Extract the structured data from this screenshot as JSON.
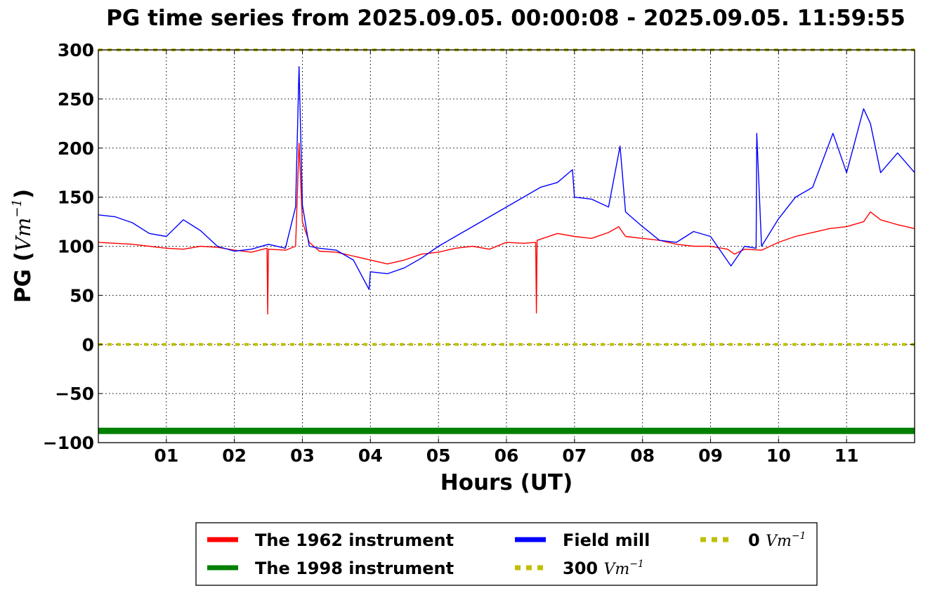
{
  "chart_data": {
    "type": "line",
    "title": "PG time series from 2025.09.05. 00:00:08 - 2025.09.05. 11:59:55",
    "xlabel": "Hours (UT)",
    "ylabel_main": "PG (",
    "ylabel_unit": "Vm",
    "ylabel_exp": "−1",
    "ylabel_close": ")",
    "xlim": [
      0,
      12
    ],
    "ylim": [
      -100,
      300
    ],
    "grid": true,
    "legend_placement": "bottom-center-outside",
    "x_ticks": [
      {
        "value": 1,
        "label": "01"
      },
      {
        "value": 2,
        "label": "02"
      },
      {
        "value": 3,
        "label": "03"
      },
      {
        "value": 4,
        "label": "04"
      },
      {
        "value": 5,
        "label": "05"
      },
      {
        "value": 6,
        "label": "06"
      },
      {
        "value": 7,
        "label": "07"
      },
      {
        "value": 8,
        "label": "08"
      },
      {
        "value": 9,
        "label": "09"
      },
      {
        "value": 10,
        "label": "10"
      },
      {
        "value": 11,
        "label": "11"
      }
    ],
    "y_ticks": [
      {
        "value": 300,
        "label": "300"
      },
      {
        "value": 250,
        "label": "250"
      },
      {
        "value": 200,
        "label": "200"
      },
      {
        "value": 150,
        "label": "150"
      },
      {
        "value": 100,
        "label": "100"
      },
      {
        "value": 50,
        "label": "50"
      },
      {
        "value": 0,
        "label": "0"
      },
      {
        "value": -50,
        "label": "−50"
      },
      {
        "value": -100,
        "label": "−100"
      }
    ],
    "series": [
      {
        "name": "The 1962 instrument",
        "color": "#ff0000",
        "style": "solid",
        "x": [
          0.0,
          0.25,
          0.5,
          0.75,
          1.0,
          1.25,
          1.5,
          1.75,
          2.0,
          2.25,
          2.48,
          2.49,
          2.5,
          2.75,
          2.9,
          2.95,
          3.0,
          3.1,
          3.25,
          3.5,
          3.75,
          4.0,
          4.25,
          4.5,
          4.75,
          5.0,
          5.25,
          5.5,
          5.75,
          6.0,
          6.25,
          6.43,
          6.44,
          6.45,
          6.75,
          7.0,
          7.25,
          7.5,
          7.65,
          7.75,
          8.0,
          8.25,
          8.5,
          8.75,
          9.0,
          9.25,
          9.35,
          9.5,
          9.75,
          10.0,
          10.25,
          10.5,
          10.75,
          11.0,
          11.25,
          11.35,
          11.5,
          11.75,
          12.0
        ],
        "y": [
          104,
          103,
          102,
          100,
          98,
          97,
          100,
          99,
          96,
          94,
          98,
          31,
          97,
          96,
          100,
          205,
          125,
          104,
          95,
          94,
          90,
          86,
          82,
          86,
          92,
          94,
          98,
          100,
          97,
          104,
          103,
          104,
          32,
          106,
          113,
          110,
          108,
          114,
          120,
          110,
          108,
          106,
          102,
          100,
          100,
          97,
          92,
          97,
          96,
          104,
          110,
          114,
          118,
          120,
          125,
          135,
          127,
          122,
          118
        ]
      },
      {
        "name": "The 1998 instrument",
        "color": "#008000",
        "style": "solid",
        "x": [
          0,
          12
        ],
        "y": [
          -88,
          -88
        ]
      },
      {
        "name": "Field mill",
        "color": "#0000ff",
        "style": "solid",
        "x": [
          0.0,
          0.25,
          0.5,
          0.75,
          1.0,
          1.25,
          1.5,
          1.75,
          2.0,
          2.25,
          2.5,
          2.75,
          2.9,
          2.95,
          3.0,
          3.1,
          3.25,
          3.5,
          3.75,
          3.98,
          4.0,
          4.25,
          4.5,
          4.75,
          5.0,
          5.25,
          5.5,
          5.75,
          6.0,
          6.25,
          6.5,
          6.75,
          6.97,
          7.0,
          7.25,
          7.5,
          7.67,
          7.75,
          8.0,
          8.25,
          8.5,
          8.75,
          9.0,
          9.3,
          9.5,
          9.67,
          9.68,
          9.75,
          10.0,
          10.25,
          10.5,
          10.8,
          11.0,
          11.25,
          11.35,
          11.5,
          11.75,
          12.0
        ],
        "y": [
          132,
          130,
          124,
          113,
          110,
          127,
          116,
          100,
          95,
          97,
          102,
          98,
          140,
          283,
          142,
          100,
          98,
          96,
          86,
          56,
          74,
          72,
          78,
          88,
          100,
          110,
          120,
          130,
          140,
          150,
          160,
          165,
          178,
          150,
          148,
          140,
          202,
          135,
          120,
          106,
          104,
          115,
          110,
          80,
          100,
          98,
          215,
          100,
          128,
          150,
          160,
          215,
          175,
          240,
          225,
          175,
          195,
          175
        ]
      },
      {
        "name": "300 Vm⁻¹",
        "color": "#bfbf00",
        "style": "dotted",
        "x": [
          0,
          12
        ],
        "y": [
          300,
          300
        ]
      },
      {
        "name": "0 Vm⁻¹",
        "color": "#bfbf00",
        "style": "dotted",
        "x": [
          0,
          12
        ],
        "y": [
          0,
          0
        ]
      }
    ],
    "legend": [
      {
        "series": 0,
        "prefix": "The 1962 instrument",
        "unit": ""
      },
      {
        "series": 1,
        "prefix": "The 1998 instrument",
        "unit": ""
      },
      {
        "series": 2,
        "prefix": "Field mill",
        "unit": ""
      },
      {
        "series": 3,
        "prefix": "300 ",
        "unit": "Vm",
        "exp": "−1"
      },
      {
        "series": 4,
        "prefix": "0 ",
        "unit": "Vm",
        "exp": "−1"
      }
    ]
  }
}
